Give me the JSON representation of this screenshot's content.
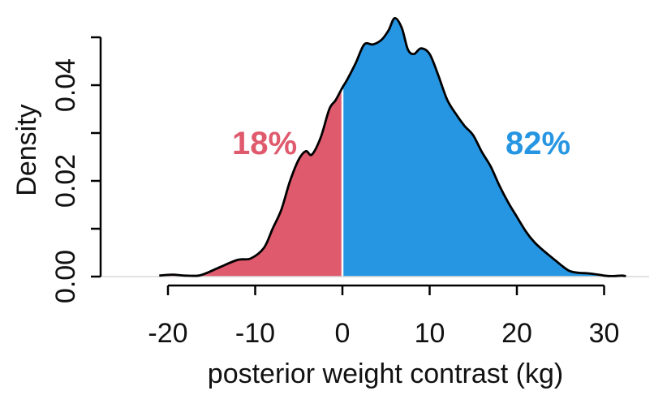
{
  "chart_data": {
    "type": "area",
    "xlabel": "posterior weight contrast (kg)",
    "ylabel": "Density",
    "xlim": [
      -20,
      30
    ],
    "ylim": [
      0,
      0.05
    ],
    "x_ticks": [
      -20,
      -10,
      0,
      10,
      20,
      30
    ],
    "x_tick_labels": [
      "-20",
      "-10",
      "0",
      "10",
      "20",
      "30"
    ],
    "y_ticks": [
      0,
      0.01,
      0.02,
      0.03,
      0.04,
      0.05
    ],
    "y_tick_labels": [
      "0.00",
      "",
      "0.02",
      "",
      "0.04",
      ""
    ],
    "threshold": 0,
    "grid": false,
    "density": {
      "x": [
        -21,
        -19.5,
        -18,
        -16.5,
        -15.5,
        -14,
        -12,
        -10.5,
        -9,
        -8,
        -7,
        -6,
        -5,
        -4.2,
        -3.5,
        -2.5,
        -1.5,
        -0.8,
        0,
        0.5,
        1.5,
        2.5,
        3.5,
        4.5,
        5.3,
        6,
        6.8,
        7.5,
        8.2,
        9,
        10,
        11,
        12,
        13,
        14,
        15,
        16,
        17,
        18,
        19,
        20,
        21,
        22,
        23,
        24,
        25,
        26,
        27,
        28,
        29,
        30,
        31,
        32,
        32.5
      ],
      "y": [
        0.0002,
        0.0004,
        0.0002,
        0.0002,
        0.0008,
        0.002,
        0.0035,
        0.0038,
        0.006,
        0.01,
        0.014,
        0.02,
        0.0245,
        0.0262,
        0.0255,
        0.029,
        0.035,
        0.0368,
        0.0395,
        0.041,
        0.0445,
        0.0485,
        0.0485,
        0.0495,
        0.0515,
        0.054,
        0.052,
        0.0475,
        0.0465,
        0.0477,
        0.0465,
        0.042,
        0.037,
        0.034,
        0.0315,
        0.0295,
        0.026,
        0.023,
        0.019,
        0.0155,
        0.0125,
        0.0095,
        0.0072,
        0.0055,
        0.004,
        0.0025,
        0.0012,
        0.0008,
        0.0007,
        0.0005,
        0.0002,
        0.0001,
        0.0002,
        0.0001
      ]
    },
    "regions": [
      {
        "side": "below_threshold",
        "label": "18%",
        "color": "#e05a6e"
      },
      {
        "side": "above_threshold",
        "label": "82%",
        "color": "#2796e2"
      }
    ]
  }
}
